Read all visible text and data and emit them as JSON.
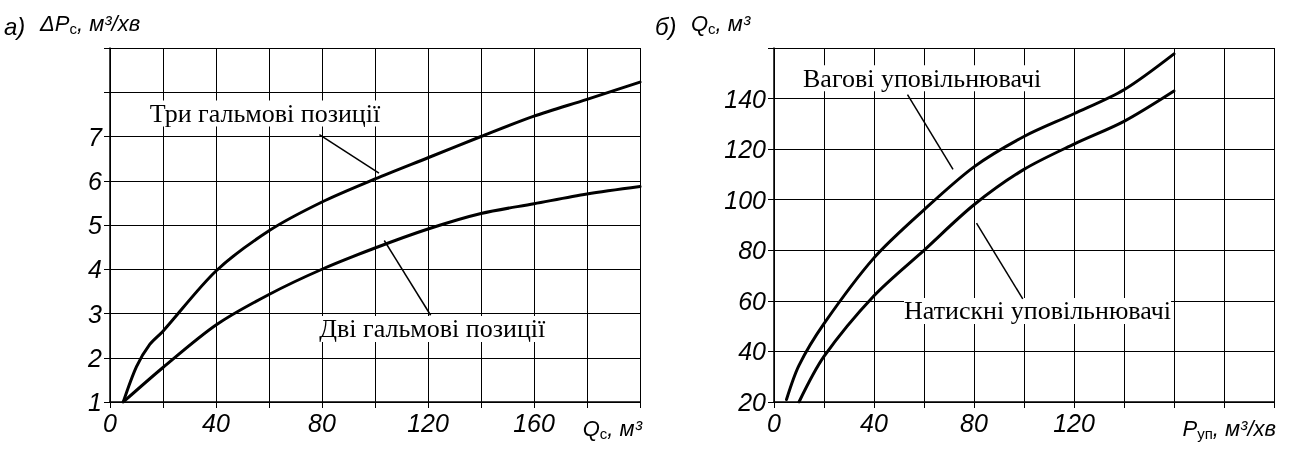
{
  "chart_data": [
    {
      "type": "line",
      "title": "а)",
      "xlabel": "Q$_{c}$, м³",
      "ylabel": "ΔP$_{c}$, м³/хв",
      "xlim": [
        0,
        200
      ],
      "ylim": [
        1,
        9
      ],
      "xticks": [
        0,
        {
          "value": 20,
          "label": null
        },
        40,
        {
          "value": 60,
          "label": null
        },
        80,
        {
          "value": 100,
          "label": null
        },
        120,
        {
          "value": 140,
          "label": null
        },
        160,
        {
          "value": 180,
          "label": null
        },
        {
          "value": 200,
          "label": null
        }
      ],
      "yticks": [
        1,
        2,
        3,
        4,
        5,
        6,
        7,
        {
          "value": 8,
          "label": null
        },
        {
          "value": 9,
          "label": null
        }
      ],
      "grid": true,
      "series": [
        {
          "name": "Три гальмові позиції",
          "color": "#000000",
          "x": [
            5,
            10,
            15,
            20,
            40,
            60,
            80,
            100,
            120,
            140,
            160,
            180,
            200
          ],
          "values": [
            1.0,
            1.8,
            2.3,
            2.6,
            3.96,
            4.87,
            5.52,
            6.04,
            6.52,
            7.0,
            7.46,
            7.84,
            8.23
          ]
        },
        {
          "name": "Дві гальмові позиції",
          "color": "#000000",
          "x": [
            5,
            20,
            40,
            60,
            80,
            100,
            120,
            140,
            160,
            180,
            200
          ],
          "values": [
            1.0,
            1.78,
            2.74,
            3.43,
            4.0,
            4.48,
            4.91,
            5.26,
            5.48,
            5.7,
            5.87
          ]
        }
      ]
    },
    {
      "type": "line",
      "title": "б)",
      "xlabel": "P$_{уп}$, м³/хв",
      "ylabel": "Q$_{c}$, м³",
      "xlim": [
        0,
        200
      ],
      "ylim": [
        20,
        160
      ],
      "xticks": [
        0,
        {
          "value": 20,
          "label": null
        },
        40,
        {
          "value": 60,
          "label": null
        },
        80,
        {
          "value": 100,
          "label": null
        },
        120,
        {
          "value": 140,
          "label": null
        },
        {
          "value": 160,
          "label": null
        },
        {
          "value": 180,
          "label": null
        },
        {
          "value": 200,
          "label": null
        }
      ],
      "yticks": [
        20,
        40,
        60,
        80,
        100,
        120,
        140,
        {
          "value": 160,
          "label": null
        }
      ],
      "grid": true,
      "series": [
        {
          "name": "Вагові уповільнювачі",
          "color": "#000000",
          "x": [
            5,
            10,
            20,
            40,
            60,
            80,
            100,
            120,
            140,
            160
          ],
          "values": [
            21,
            34.5,
            51,
            77,
            96,
            113,
            125,
            134,
            143.5,
            157.7
          ]
        },
        {
          "name": "Натискні уповільнювачі",
          "color": "#000000",
          "x": [
            10,
            20,
            40,
            60,
            80,
            100,
            120,
            140,
            160
          ],
          "values": [
            20,
            38,
            62,
            80,
            98,
            112,
            122,
            131,
            143
          ]
        }
      ]
    }
  ]
}
